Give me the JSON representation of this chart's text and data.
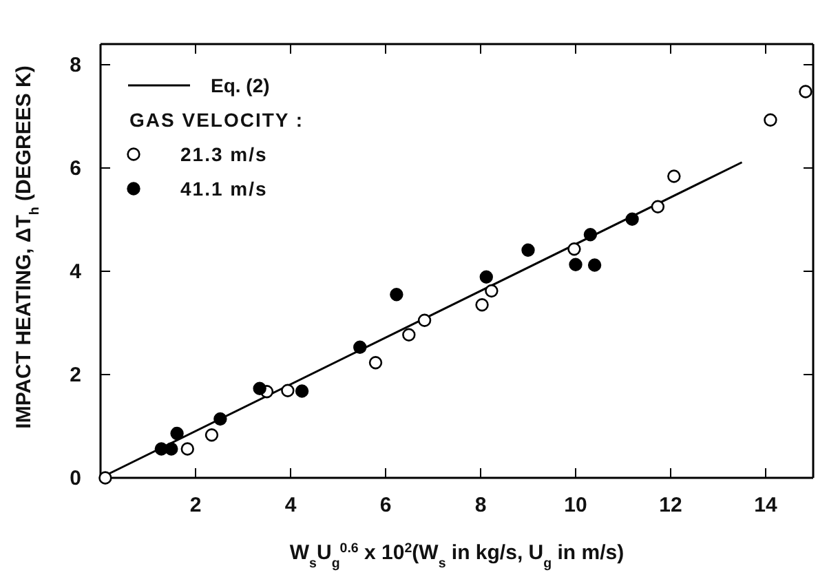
{
  "chart_data": {
    "type": "scatter",
    "xlabel": "W$_{s}$U$_{g}$$^{0.6}$ x 10$^{2}$(W$_{s}$ in kg/s, U$_{g}$ in m/s)",
    "ylabel": "IMPACT HEATING, ΔT$_{h}$ (DEGREES K)",
    "legend_title": "GAS VELOCITY :",
    "legend": "top left",
    "grid": false,
    "xlim": [
      0,
      15
    ],
    "ylim": [
      0,
      8.4
    ],
    "xticks": [
      2,
      4,
      6,
      8,
      10,
      12,
      14
    ],
    "yticks": [
      0,
      2,
      4,
      6,
      8
    ],
    "series": [
      {
        "name": "Eq. (2)",
        "type": "line",
        "color": "#000000",
        "marker": "none",
        "line_style": "solid",
        "x": [
          0,
          13.5
        ],
        "values": [
          0,
          6.11
        ]
      },
      {
        "name": "21.3 m/s",
        "color": "#ffffff",
        "marker": "circle",
        "x": [
          0.1,
          1.83,
          2.34,
          3.5,
          3.94,
          5.79,
          6.49,
          6.82,
          8.03,
          8.23,
          9.97,
          11.73,
          12.07,
          14.1,
          14.84
        ],
        "values": [
          0,
          0.56,
          0.83,
          1.67,
          1.69,
          2.23,
          2.77,
          3.05,
          3.35,
          3.62,
          4.43,
          5.25,
          5.84,
          6.93,
          7.48
        ]
      },
      {
        "name": "41.1 m/s",
        "color": "#000000",
        "marker": "circle",
        "x": [
          1.28,
          1.49,
          1.61,
          2.52,
          3.35,
          4.24,
          5.46,
          6.23,
          8.12,
          9.0,
          10.0,
          10.4,
          10.31,
          11.19
        ],
        "values": [
          0.56,
          0.56,
          0.86,
          1.14,
          1.73,
          1.68,
          2.53,
          3.55,
          3.89,
          4.41,
          4.13,
          4.12,
          4.71,
          5.01
        ]
      }
    ]
  }
}
